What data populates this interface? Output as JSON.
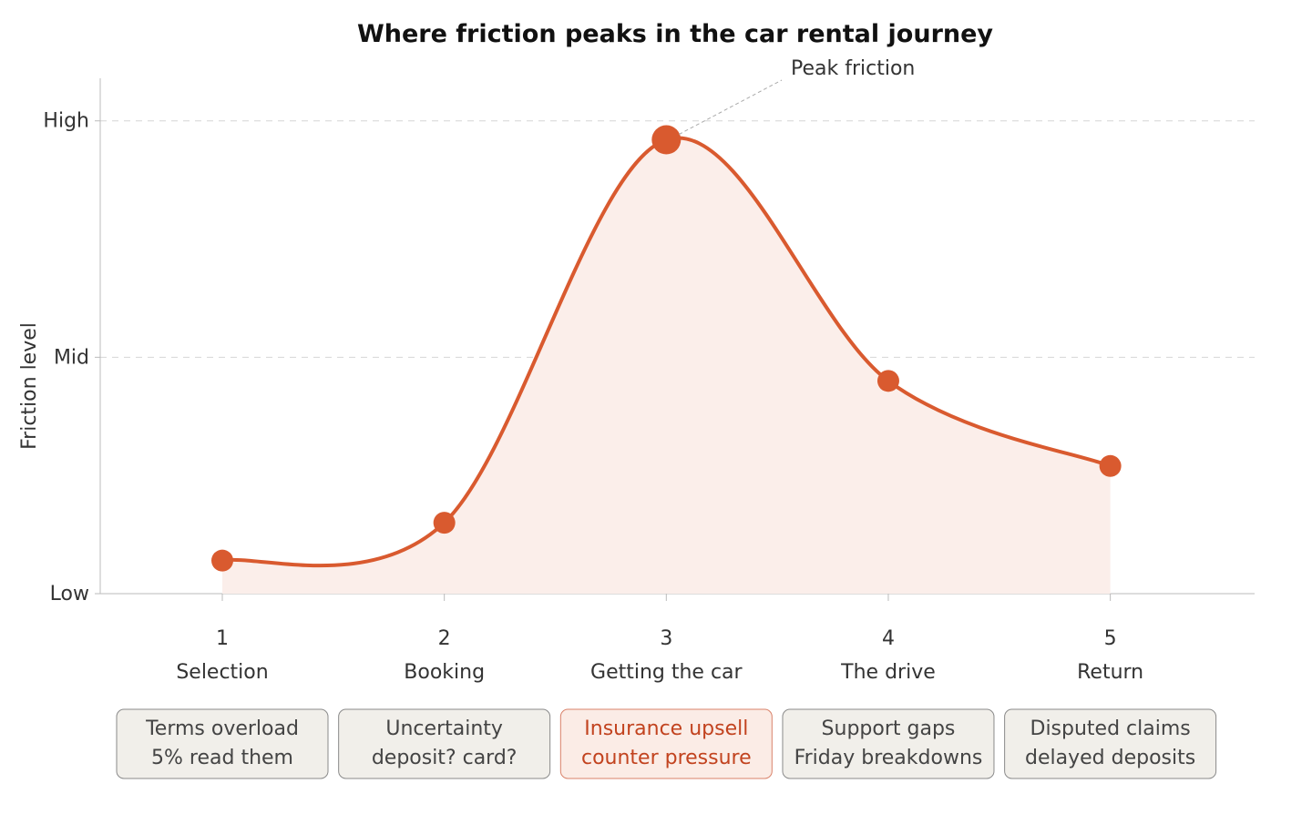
{
  "chart_data": {
    "type": "line",
    "title": "Where friction peaks in the car rental journey",
    "xlabel": "",
    "ylabel": "Friction level",
    "y_tick_labels": [
      "Low",
      "Mid",
      "High"
    ],
    "y_tick_values": [
      0,
      0.5,
      1
    ],
    "ylim": [
      0,
      1.09
    ],
    "xlim": [
      0.45,
      5.65
    ],
    "grid": true,
    "categories": [
      "Selection",
      "Booking",
      "Getting the car",
      "The drive",
      "Return"
    ],
    "x": [
      1,
      2,
      3,
      4,
      5
    ],
    "series": [
      {
        "values": [
          0.07,
          0.15,
          0.96,
          0.45,
          0.27
        ]
      }
    ],
    "annotations": [
      {
        "text": "Peak friction",
        "x": 3,
        "y": 0.96
      }
    ],
    "stage_notes": [
      {
        "line1": "Terms overload",
        "line2": "5% read them",
        "highlight": false
      },
      {
        "line1": "Uncertainty",
        "line2": "deposit? card?",
        "highlight": false
      },
      {
        "line1": "Insurance upsell",
        "line2": "counter pressure",
        "highlight": true
      },
      {
        "line1": "Support gaps",
        "line2": "Friday breakdowns",
        "highlight": false
      },
      {
        "line1": "Disputed claims",
        "line2": "delayed deposits",
        "highlight": false
      }
    ],
    "colors": {
      "line": "#d95a2f",
      "fill": "#fbeeea",
      "highlight_text": "#c2431f",
      "highlight_box_fill": "#fbece6",
      "highlight_box_border": "#d9826a",
      "box_fill": "#f1efea",
      "box_border": "#8a8a8a",
      "text": "#333333",
      "grid": "#d6d6d6"
    }
  }
}
